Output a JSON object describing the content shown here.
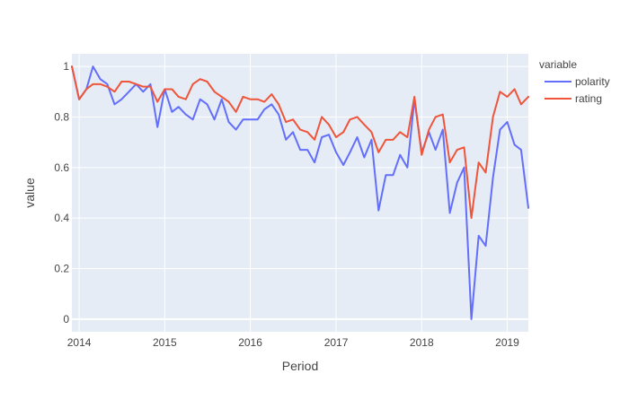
{
  "chart_data": {
    "type": "line",
    "xlabel": "Period",
    "ylabel": "value",
    "legend_title": "variable",
    "legend_position": "right",
    "grid": true,
    "x_type": "date",
    "xlim": [
      "2013-12-01",
      "2019-04-01"
    ],
    "ylim": [
      -0.05,
      1.05
    ],
    "x_ticks": [
      {
        "value": "2014-01-01",
        "label": "2014"
      },
      {
        "value": "2015-01-01",
        "label": "2015"
      },
      {
        "value": "2016-01-01",
        "label": "2016"
      },
      {
        "value": "2017-01-01",
        "label": "2017"
      },
      {
        "value": "2018-01-01",
        "label": "2018"
      },
      {
        "value": "2019-01-01",
        "label": "2019"
      }
    ],
    "y_ticks": [
      {
        "value": 0,
        "label": "0"
      },
      {
        "value": 0.2,
        "label": "0.2"
      },
      {
        "value": 0.4,
        "label": "0.4"
      },
      {
        "value": 0.6,
        "label": "0.6"
      },
      {
        "value": 0.8,
        "label": "0.8"
      },
      {
        "value": 1,
        "label": "1"
      }
    ],
    "x": [
      "2013-12-01",
      "2014-01-01",
      "2014-02-01",
      "2014-03-01",
      "2014-04-01",
      "2014-05-01",
      "2014-06-01",
      "2014-07-01",
      "2014-08-01",
      "2014-09-01",
      "2014-10-01",
      "2014-11-01",
      "2014-12-01",
      "2015-01-01",
      "2015-02-01",
      "2015-03-01",
      "2015-04-01",
      "2015-05-01",
      "2015-06-01",
      "2015-07-01",
      "2015-08-01",
      "2015-09-01",
      "2015-10-01",
      "2015-11-01",
      "2015-12-01",
      "2016-01-01",
      "2016-02-01",
      "2016-03-01",
      "2016-04-01",
      "2016-05-01",
      "2016-06-01",
      "2016-07-01",
      "2016-08-01",
      "2016-09-01",
      "2016-10-01",
      "2016-11-01",
      "2016-12-01",
      "2017-01-01",
      "2017-02-01",
      "2017-03-01",
      "2017-04-01",
      "2017-05-01",
      "2017-06-01",
      "2017-07-01",
      "2017-08-01",
      "2017-09-01",
      "2017-10-01",
      "2017-11-01",
      "2017-12-01",
      "2018-01-01",
      "2018-02-01",
      "2018-03-01",
      "2018-04-01",
      "2018-05-01",
      "2018-06-01",
      "2018-07-01",
      "2018-08-01",
      "2018-09-01",
      "2018-10-01",
      "2018-11-01",
      "2018-12-01",
      "2019-01-01",
      "2019-02-01",
      "2019-03-01",
      "2019-04-01"
    ],
    "series": [
      {
        "name": "polarity",
        "color": "#636efa",
        "values": [
          1.0,
          0.87,
          0.91,
          1.0,
          0.95,
          0.93,
          0.85,
          0.87,
          0.9,
          0.93,
          0.9,
          0.93,
          0.76,
          0.91,
          0.82,
          0.84,
          0.81,
          0.79,
          0.87,
          0.85,
          0.79,
          0.87,
          0.78,
          0.75,
          0.79,
          0.79,
          0.79,
          0.83,
          0.85,
          0.81,
          0.71,
          0.74,
          0.67,
          0.67,
          0.62,
          0.72,
          0.73,
          0.66,
          0.61,
          0.66,
          0.72,
          0.64,
          0.71,
          0.43,
          0.57,
          0.57,
          0.65,
          0.6,
          0.87,
          0.66,
          0.74,
          0.67,
          0.75,
          0.42,
          0.54,
          0.6,
          0.0,
          0.33,
          0.29,
          0.56,
          0.75,
          0.78,
          0.69,
          0.67,
          0.44
        ]
      },
      {
        "name": "rating",
        "color": "#ef553b",
        "values": [
          1.0,
          0.87,
          0.91,
          0.93,
          0.93,
          0.92,
          0.9,
          0.94,
          0.94,
          0.93,
          0.92,
          0.92,
          0.86,
          0.91,
          0.91,
          0.88,
          0.87,
          0.93,
          0.95,
          0.94,
          0.9,
          0.88,
          0.86,
          0.82,
          0.88,
          0.87,
          0.87,
          0.86,
          0.89,
          0.85,
          0.78,
          0.79,
          0.75,
          0.74,
          0.71,
          0.8,
          0.77,
          0.72,
          0.74,
          0.79,
          0.8,
          0.77,
          0.74,
          0.66,
          0.71,
          0.71,
          0.74,
          0.72,
          0.88,
          0.65,
          0.75,
          0.8,
          0.81,
          0.62,
          0.67,
          0.68,
          0.4,
          0.62,
          0.58,
          0.8,
          0.9,
          0.88,
          0.91,
          0.85,
          0.88
        ]
      }
    ]
  }
}
